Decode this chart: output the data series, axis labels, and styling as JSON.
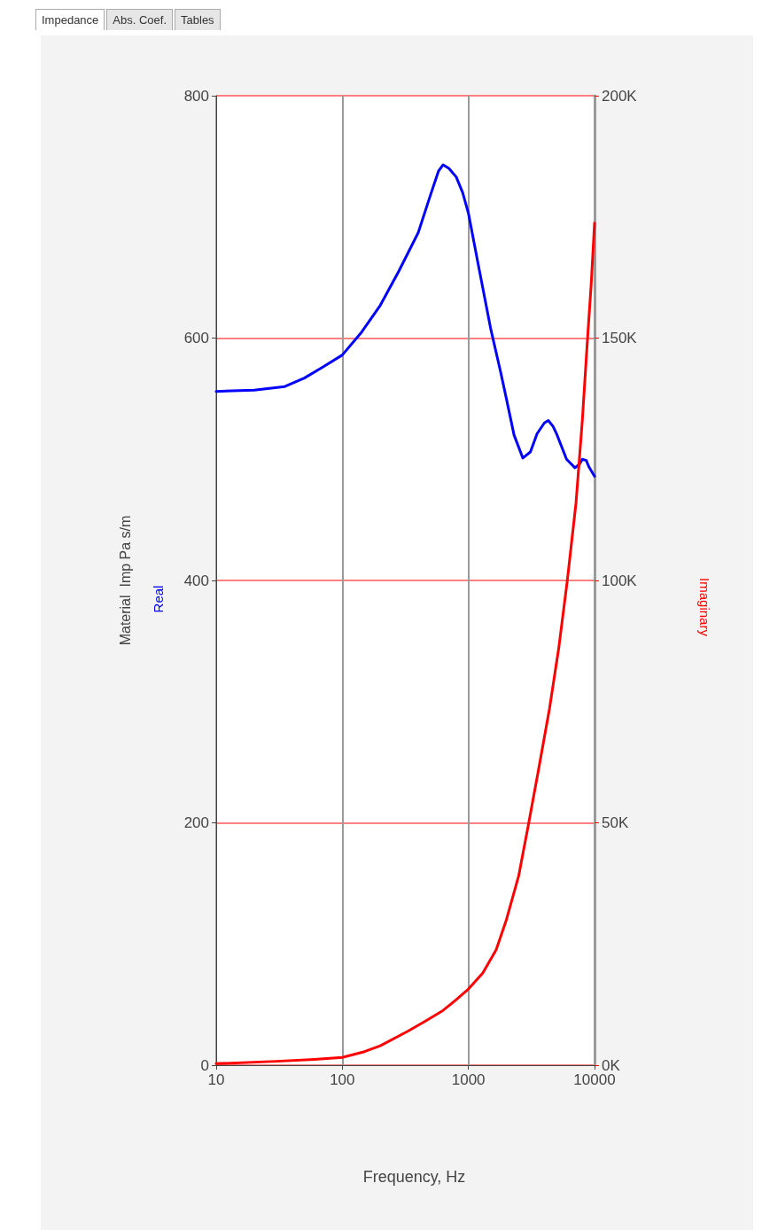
{
  "chart_data": {
    "type": "line",
    "ylabel": "Material  Imp Pa s/m",
    "xlabel": "Frequency, Hz",
    "annotations": [
      "Impedance",
      "Abs. Coef.",
      "Tables"
    ],
    "log": "x",
    "grid": true,
    "legend": false,
    "marker": "none",
    "line_style": "solid",
    "xlim": [
      10,
      10000
    ],
    "xticks": [
      10,
      100,
      1000,
      10000
    ],
    "ylim": [
      0,
      800
    ],
    "yticks": [
      0,
      200,
      400,
      600,
      800
    ],
    "y2lim": [
      0,
      200000
    ],
    "y2ticks": [
      {
        "value": 0,
        "label": "0K"
      },
      {
        "value": 50000,
        "label": "50K"
      },
      {
        "value": 100000,
        "label": "100K"
      },
      {
        "value": 150000,
        "label": "150K"
      },
      {
        "value": 200000,
        "label": "200K"
      }
    ],
    "series": [
      {
        "name": "Real",
        "color": "#0000ff",
        "x": [
          10,
          20,
          35,
          50,
          70,
          100,
          140,
          200,
          280,
          400,
          500,
          580,
          630,
          700,
          800,
          900,
          1000,
          1200,
          1500,
          1800,
          2000,
          2300,
          2700,
          3100,
          3500,
          4000,
          4300,
          4700,
          5000,
          6000,
          7000,
          7600,
          8000,
          8600,
          9000,
          10000
        ],
        "values": [
          556,
          557,
          560,
          567,
          576,
          586,
          604,
          627,
          655,
          687,
          718,
          738,
          743,
          740,
          733,
          720,
          703,
          660,
          608,
          572,
          550,
          520,
          501,
          506,
          521,
          530,
          532,
          527,
          521,
          500,
          493,
          496,
          500,
          499,
          494,
          486
        ]
      },
      {
        "name": "Imaginary",
        "color": "#ff0000",
        "axis": "y2",
        "x": [
          10,
          30,
          60,
          100,
          150,
          200,
          330,
          450,
          630,
          800,
          1000,
          1300,
          1660,
          2000,
          2500,
          2980,
          3600,
          4390,
          5200,
          6070,
          7130,
          8000,
          8790,
          9400,
          10000
        ],
        "values": [
          300,
          800,
          1200,
          1600,
          2800,
          4000,
          7000,
          9000,
          11300,
          13500,
          15700,
          19000,
          23800,
          30000,
          39000,
          49400,
          61000,
          73500,
          86000,
          99800,
          116000,
          133000,
          149700,
          161000,
          173700
        ]
      }
    ]
  }
}
